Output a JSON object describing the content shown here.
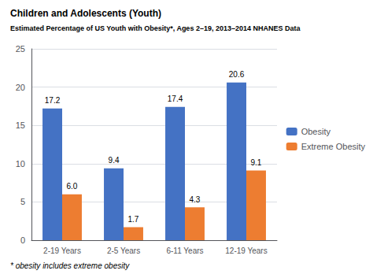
{
  "chart_data": {
    "type": "bar",
    "title": "Children and Adolescents (Youth)",
    "subtitle": "Estimated Percentage of US Youth with Obesity*, Ages 2–19, 2013–2014 NHANES Data",
    "categories": [
      "2-19 Years",
      "2-5 Years",
      "6-11 Years",
      "12-19 Years"
    ],
    "series": [
      {
        "name": "Obesity",
        "color": "#4472C4",
        "values": [
          17.2,
          9.4,
          17.4,
          20.6
        ]
      },
      {
        "name": "Extreme Obesity",
        "color": "#ED7D31",
        "values": [
          6.0,
          1.7,
          4.3,
          9.1
        ],
        "value_labels": [
          "6.0",
          "1.7",
          "4.3",
          "9.1"
        ]
      }
    ],
    "ylim": [
      0,
      25
    ],
    "yticks": [
      0,
      5,
      10,
      15,
      20,
      25
    ],
    "grid": true,
    "legend": "right",
    "data_labels": true,
    "footnote": "* obesity includes extreme obesity"
  }
}
